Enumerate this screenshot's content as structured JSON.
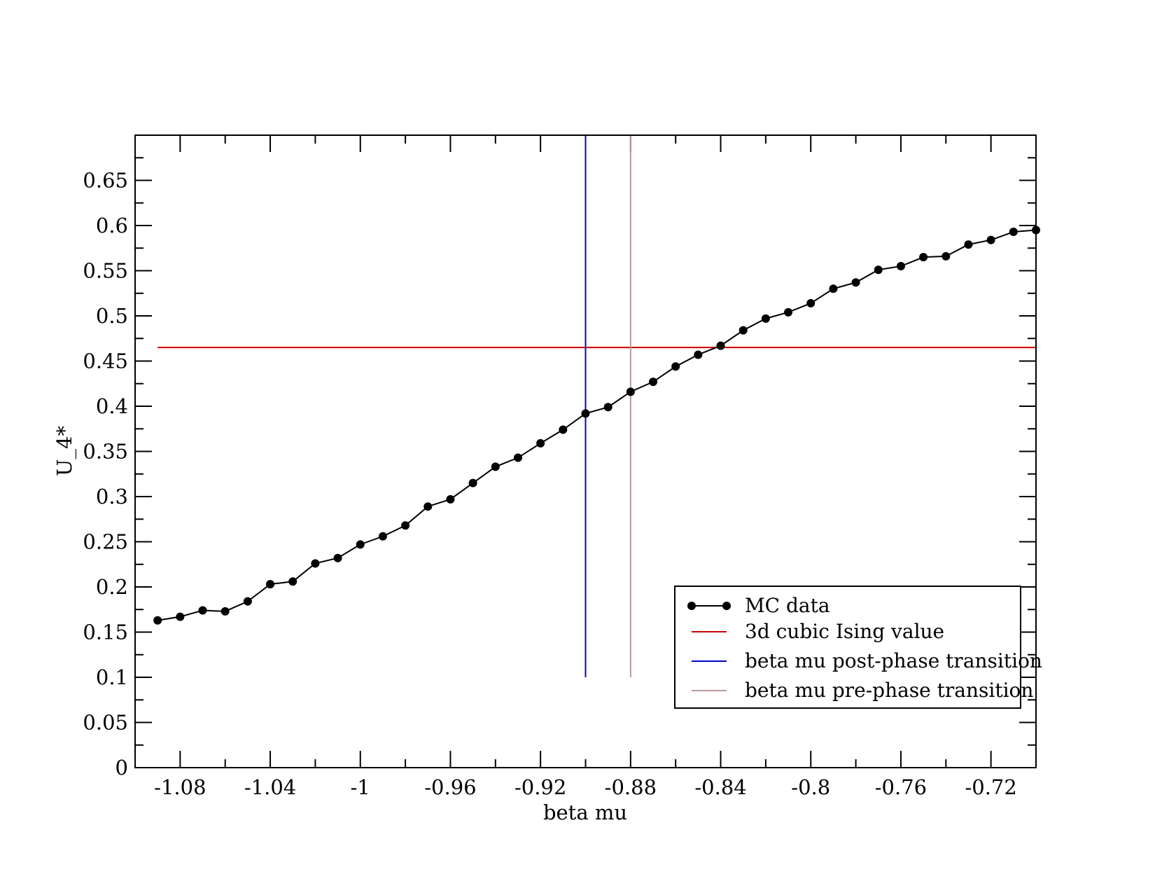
{
  "chart_data": {
    "type": "line",
    "title": "",
    "xlabel": "beta mu",
    "ylabel": "U_4*",
    "xlim": [
      -1.1,
      -0.7
    ],
    "ylim": [
      0,
      0.7
    ],
    "x_ticks": [
      -1.08,
      -1.04,
      -1.0,
      -0.96,
      -0.92,
      -0.88,
      -0.84,
      -0.8,
      -0.76,
      -0.72
    ],
    "x_tick_labels": [
      "-1.08",
      "-1.04",
      "-1",
      "-0.96",
      "-0.92",
      "-0.88",
      "-0.84",
      "-0.8",
      "-0.76",
      "-0.72"
    ],
    "y_ticks": [
      0,
      0.05,
      0.1,
      0.15,
      0.2,
      0.25,
      0.3,
      0.35,
      0.4,
      0.45,
      0.5,
      0.55,
      0.6,
      0.65
    ],
    "y_tick_labels": [
      "0",
      "0.05",
      "0.1",
      "0.15",
      "0.2",
      "0.25",
      "0.3",
      "0.35",
      "0.4",
      "0.45",
      "0.5",
      "0.55",
      "0.6",
      "0.65"
    ],
    "legend_position": "bottom-right",
    "series": [
      {
        "name": "MC data",
        "style": "line-with-markers",
        "color": "#000000",
        "x": [
          -1.09,
          -1.08,
          -1.07,
          -1.06,
          -1.05,
          -1.04,
          -1.03,
          -1.02,
          -1.01,
          -1.0,
          -0.99,
          -0.98,
          -0.97,
          -0.96,
          -0.95,
          -0.94,
          -0.93,
          -0.92,
          -0.91,
          -0.9,
          -0.89,
          -0.88,
          -0.87,
          -0.86,
          -0.85,
          -0.84,
          -0.83,
          -0.82,
          -0.81,
          -0.8,
          -0.79,
          -0.78,
          -0.77,
          -0.76,
          -0.75,
          -0.74,
          -0.73,
          -0.72,
          -0.71,
          -0.7
        ],
        "y": [
          0.163,
          0.167,
          0.174,
          0.173,
          0.184,
          0.203,
          0.206,
          0.226,
          0.232,
          0.247,
          0.256,
          0.268,
          0.289,
          0.297,
          0.315,
          0.333,
          0.343,
          0.359,
          0.374,
          0.392,
          0.399,
          0.416,
          0.427,
          0.444,
          0.457,
          0.467,
          0.484,
          0.497,
          0.504,
          0.514,
          0.53,
          0.537,
          0.551,
          0.555,
          0.565,
          0.566,
          0.579,
          0.584,
          0.593,
          0.595
        ]
      },
      {
        "name": "3d cubic Ising value",
        "style": "hline",
        "color": "#cc0000",
        "y": 0.465,
        "x_range": [
          -1.09,
          -0.7
        ]
      },
      {
        "name": "beta mu post-phase transition",
        "style": "vline",
        "color": "#0000cc",
        "x": -0.9,
        "y_range": [
          0.1,
          0.7
        ]
      },
      {
        "name": "beta mu pre-phase transition",
        "style": "vline",
        "color": "#b89a9a",
        "x": -0.88,
        "y_range": [
          0.1,
          0.7
        ]
      }
    ]
  }
}
